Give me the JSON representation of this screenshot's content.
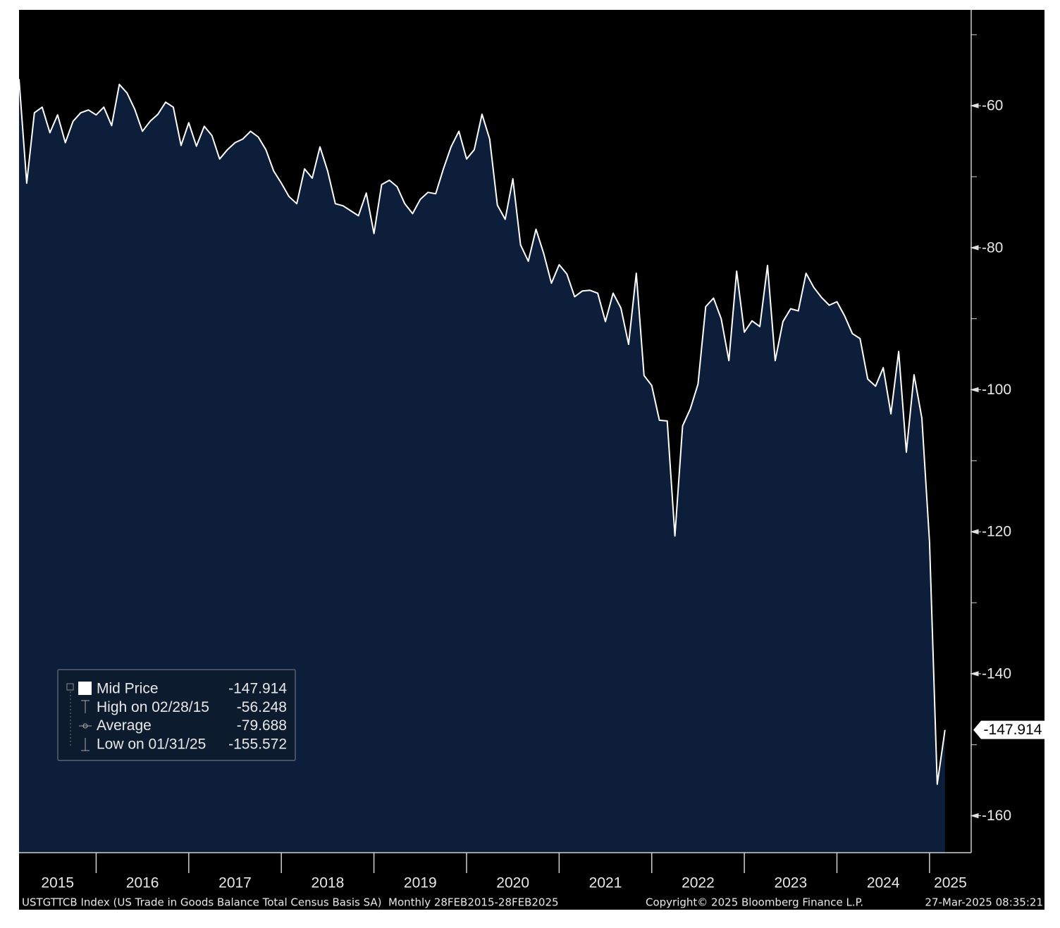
{
  "chart_data": {
    "type": "area-line",
    "x": [
      2015.167,
      2015.25,
      2015.333,
      2015.417,
      2015.5,
      2015.583,
      2015.667,
      2015.75,
      2015.833,
      2015.917,
      2016.0,
      2016.083,
      2016.167,
      2016.25,
      2016.333,
      2016.417,
      2016.5,
      2016.583,
      2016.667,
      2016.75,
      2016.833,
      2016.917,
      2017.0,
      2017.083,
      2017.167,
      2017.25,
      2017.333,
      2017.417,
      2017.5,
      2017.583,
      2017.667,
      2017.75,
      2017.833,
      2017.917,
      2018.0,
      2018.083,
      2018.167,
      2018.25,
      2018.333,
      2018.417,
      2018.5,
      2018.583,
      2018.667,
      2018.75,
      2018.833,
      2018.917,
      2019.0,
      2019.083,
      2019.167,
      2019.25,
      2019.333,
      2019.417,
      2019.5,
      2019.583,
      2019.667,
      2019.75,
      2019.833,
      2019.917,
      2020.0,
      2020.083,
      2020.167,
      2020.25,
      2020.333,
      2020.417,
      2020.5,
      2020.583,
      2020.667,
      2020.75,
      2020.833,
      2020.917,
      2021.0,
      2021.083,
      2021.167,
      2021.25,
      2021.333,
      2021.417,
      2021.5,
      2021.583,
      2021.667,
      2021.75,
      2021.833,
      2021.917,
      2022.0,
      2022.083,
      2022.167,
      2022.25,
      2022.333,
      2022.417,
      2022.5,
      2022.583,
      2022.667,
      2022.75,
      2022.833,
      2022.917,
      2023.0,
      2023.083,
      2023.167,
      2023.25,
      2023.333,
      2023.417,
      2023.5,
      2023.583,
      2023.667,
      2023.75,
      2023.833,
      2023.917,
      2024.0,
      2024.083,
      2024.167,
      2024.25,
      2024.333,
      2024.417,
      2024.5,
      2024.583,
      2024.667,
      2024.75,
      2024.833,
      2024.917,
      2025.0,
      2025.083,
      2025.167
    ],
    "series": [
      {
        "name": "Mid Price",
        "line_color": "#ffffff",
        "fill_color": "#0c1e3a",
        "values": [
          -56.248,
          -70.9,
          -61.0,
          -60.2,
          -63.8,
          -61.3,
          -65.2,
          -62.2,
          -61.0,
          -60.6,
          -61.3,
          -60.2,
          -62.8,
          -57.0,
          -58.2,
          -60.5,
          -63.6,
          -62.2,
          -61.2,
          -59.5,
          -60.2,
          -65.6,
          -62.4,
          -65.7,
          -62.9,
          -64.2,
          -67.5,
          -66.2,
          -65.2,
          -64.7,
          -63.6,
          -64.4,
          -66.2,
          -69.2,
          -70.9,
          -72.8,
          -73.8,
          -68.9,
          -70.2,
          -65.8,
          -69.2,
          -73.8,
          -74.1,
          -74.8,
          -75.5,
          -72.3,
          -78.0,
          -71.1,
          -70.5,
          -71.4,
          -73.8,
          -75.2,
          -73.2,
          -72.2,
          -72.4,
          -68.9,
          -65.8,
          -63.6,
          -67.5,
          -66.2,
          -61.2,
          -64.7,
          -74.0,
          -76.0,
          -70.3,
          -79.6,
          -81.9,
          -77.4,
          -80.8,
          -85.0,
          -82.4,
          -83.7,
          -86.9,
          -86.1,
          -86.0,
          -86.4,
          -90.4,
          -86.4,
          -88.5,
          -93.6,
          -83.6,
          -98.0,
          -99.4,
          -104.3,
          -104.4,
          -120.6,
          -105.1,
          -102.7,
          -99.2,
          -88.3,
          -87.1,
          -90.0,
          -95.9,
          -83.3,
          -91.9,
          -90.3,
          -91.1,
          -82.5,
          -95.9,
          -90.4,
          -88.6,
          -88.9,
          -83.6,
          -85.6,
          -87.0,
          -88.1,
          -87.6,
          -89.6,
          -92.1,
          -92.8,
          -98.5,
          -99.5,
          -96.9,
          -103.4,
          -94.6,
          -108.8,
          -97.9,
          -104.0,
          -121.5,
          -155.572,
          -147.914
        ]
      }
    ],
    "xlim": [
      2015.167,
      2025.45
    ],
    "xticks": [
      2015,
      2016,
      2017,
      2018,
      2019,
      2020,
      2021,
      2022,
      2023,
      2024,
      2025
    ],
    "ylim": [
      -165.2,
      -46.5
    ],
    "yticks": [
      -60,
      -80,
      -100,
      -120,
      -140,
      -160
    ],
    "yminorticks": [
      -50,
      -70,
      -90,
      -110,
      -130,
      -150
    ],
    "legend": [
      {
        "label": "Mid Price",
        "value": -147.914
      },
      {
        "label": "High on 02/28/15",
        "value": -56.248
      },
      {
        "label": "Average",
        "value": -79.688
      },
      {
        "label": "Low on 01/31/25",
        "value": -155.572
      }
    ],
    "footer": {
      "source": "USTGTTCB Index (US Trade in Goods Balance Total Census Basis SA)  Monthly 28FEB2015-28FEB2025",
      "copyright": "Copyright© 2025 Bloomberg Finance L.P.",
      "timestamp": "27-Mar-2025 08:35:21"
    }
  }
}
